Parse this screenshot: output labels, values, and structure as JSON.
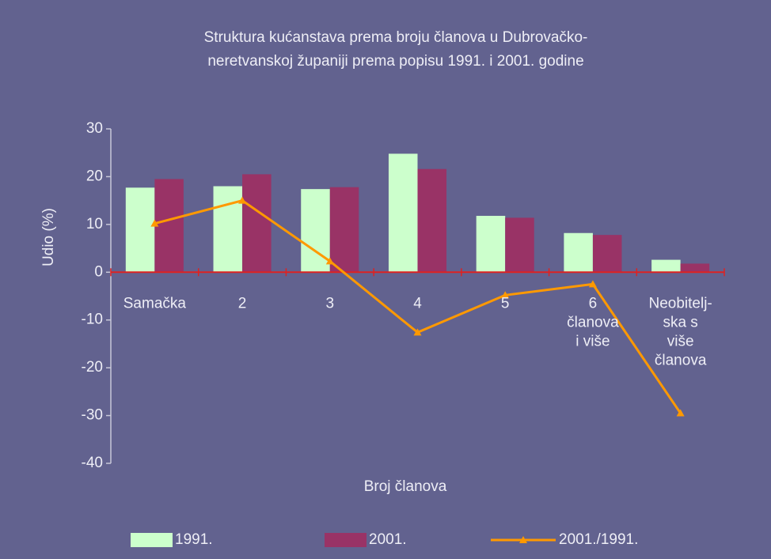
{
  "chart_data": {
    "type": "bar_line",
    "title": "Struktura kućanstava prema broju članova u Dubrovačko-\nneretvanskoj županiji prema popisu 1991. i 2001. godine",
    "x_label": "Broj članova",
    "y_label": "Udio (%)",
    "categories": [
      "Samačka",
      "2",
      "3",
      "4",
      "5",
      "6\nčlanova\ni više",
      "Neobitelj-\nska s\nviše\nčlanova"
    ],
    "series": [
      {
        "name": "1991.",
        "type": "bar",
        "color": "#ccffcc",
        "values": [
          17.7,
          18,
          17.4,
          24.8,
          11.8,
          8.2,
          2.6
        ]
      },
      {
        "name": "2001.",
        "type": "bar",
        "color": "#993366",
        "values": [
          19.5,
          20.5,
          17.8,
          21.6,
          11.4,
          7.8,
          1.8
        ]
      },
      {
        "name": "2001./1991.",
        "type": "line",
        "color": "#ff9900",
        "values": [
          10.2,
          15.0,
          2.3,
          -12.6,
          -4.8,
          -2.5,
          -29.5
        ]
      }
    ],
    "ylim": [
      -40,
      30
    ],
    "yticks": [
      30,
      20,
      10,
      0,
      -10,
      -20,
      -30,
      -40
    ]
  }
}
